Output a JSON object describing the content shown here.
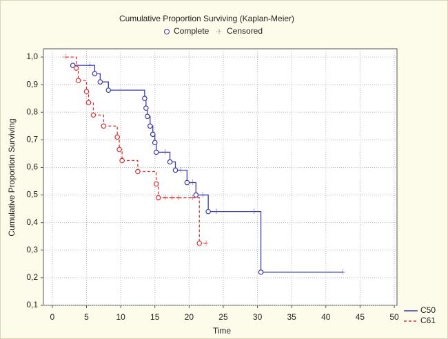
{
  "chart_data": {
    "type": "kaplan-meier",
    "title": "Cumulative Proportion Surviving (Kaplan-Meier)",
    "marker_legend": [
      "Complete",
      "Censored"
    ],
    "xlabel": "Time",
    "ylabel": "Cumulative Proportion Surviving",
    "xlim": [
      -1.3,
      50.4
    ],
    "ylim": [
      0.1,
      1.03
    ],
    "xticks": [
      0,
      5,
      10,
      15,
      20,
      25,
      30,
      35,
      40,
      45,
      50
    ],
    "yticks": [
      {
        "value": 0.1,
        "label": "0,1"
      },
      {
        "value": 0.2,
        "label": "0,2"
      },
      {
        "value": 0.3,
        "label": "0,3"
      },
      {
        "value": 0.4,
        "label": "0,4"
      },
      {
        "value": 0.5,
        "label": "0,5"
      },
      {
        "value": 0.6,
        "label": "0,6"
      },
      {
        "value": 0.7,
        "label": "0,7"
      },
      {
        "value": 0.8,
        "label": "0,8"
      },
      {
        "value": 0.9,
        "label": "0,9"
      },
      {
        "value": 1.0,
        "label": "1,0"
      }
    ],
    "grid": true,
    "series": [
      {
        "name": "C50",
        "color": "#3a3aa8",
        "dashed": false,
        "x": [
          3,
          5.5,
          6.2,
          7,
          8.2,
          13.5,
          13.7,
          13.9,
          14.3,
          14.7,
          15,
          15.2,
          16.5,
          17.2,
          18,
          18.8,
          19.7,
          20.5,
          21,
          22,
          22.8,
          24,
          29.5,
          30.5,
          42.5
        ],
        "values": [
          0.97,
          0.97,
          0.94,
          0.91,
          0.88,
          0.85,
          0.815,
          0.785,
          0.75,
          0.72,
          0.69,
          0.655,
          0.655,
          0.62,
          0.59,
          0.59,
          0.545,
          0.545,
          0.5,
          0.5,
          0.44,
          0.44,
          0.44,
          0.22,
          0.22
        ],
        "censored": [
          false,
          true,
          false,
          false,
          false,
          false,
          false,
          false,
          false,
          false,
          false,
          false,
          true,
          false,
          false,
          true,
          false,
          true,
          false,
          true,
          false,
          true,
          true,
          false,
          true
        ]
      },
      {
        "name": "C61",
        "color": "#e03030",
        "dashed": true,
        "x": [
          2,
          3.5,
          3.8,
          5,
          5.3,
          6,
          7.5,
          9.5,
          9.8,
          10.2,
          12.5,
          15.2,
          15.5,
          16.5,
          17.5,
          18.5,
          20.5,
          21.5,
          22.5
        ],
        "values": [
          1.0,
          0.96,
          0.915,
          0.875,
          0.835,
          0.79,
          0.75,
          0.71,
          0.665,
          0.625,
          0.585,
          0.54,
          0.49,
          0.49,
          0.49,
          0.49,
          0.49,
          0.325,
          0.325
        ],
        "censored": [
          true,
          false,
          false,
          false,
          false,
          false,
          false,
          false,
          false,
          false,
          false,
          false,
          false,
          true,
          true,
          true,
          true,
          false,
          true
        ]
      }
    ]
  }
}
